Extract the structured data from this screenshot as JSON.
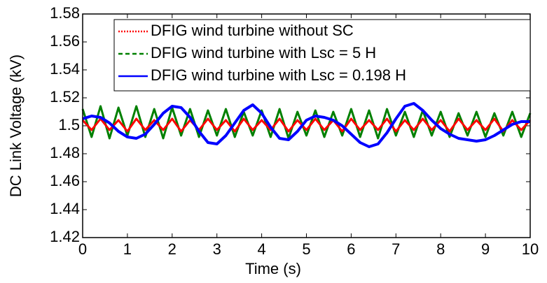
{
  "chart_data": {
    "type": "line",
    "x_label": "Time (s)",
    "y_label": "DC Link Voltage (kV)",
    "x": [
      0,
      0.2,
      0.4,
      0.6,
      0.8,
      1,
      1.2,
      1.4,
      1.6,
      1.8,
      2,
      2.2,
      2.4,
      2.6,
      2.8,
      3,
      3.2,
      3.4,
      3.6,
      3.8,
      4,
      4.2,
      4.4,
      4.6,
      4.8,
      5,
      5.2,
      5.4,
      5.6,
      5.8,
      6,
      6.2,
      6.4,
      6.6,
      6.8,
      7,
      7.2,
      7.4,
      7.6,
      7.8,
      8,
      8.2,
      8.4,
      8.6,
      8.8,
      9,
      9.2,
      9.4,
      9.6,
      9.8,
      10
    ],
    "series": [
      {
        "name": "DFIG wind turbine without SC",
        "color": "#ff0000",
        "style": "dotted",
        "values": [
          1.504,
          1.497,
          1.505,
          1.497,
          1.504,
          1.496,
          1.505,
          1.497,
          1.504,
          1.497,
          1.505,
          1.496,
          1.504,
          1.497,
          1.505,
          1.497,
          1.504,
          1.496,
          1.505,
          1.497,
          1.504,
          1.497,
          1.505,
          1.496,
          1.504,
          1.497,
          1.505,
          1.497,
          1.504,
          1.496,
          1.505,
          1.497,
          1.504,
          1.497,
          1.505,
          1.496,
          1.504,
          1.497,
          1.505,
          1.497,
          1.504,
          1.496,
          1.505,
          1.497,
          1.504,
          1.497,
          1.505,
          1.496,
          1.504,
          1.497,
          1.504
        ]
      },
      {
        "name": "DFIG wind turbine with Lsc = 5 H",
        "color": "#008000",
        "style": "dashed",
        "values": [
          1.512,
          1.492,
          1.514,
          1.491,
          1.513,
          1.493,
          1.514,
          1.492,
          1.512,
          1.491,
          1.513,
          1.493,
          1.512,
          1.492,
          1.511,
          1.493,
          1.512,
          1.492,
          1.51,
          1.493,
          1.511,
          1.492,
          1.512,
          1.491,
          1.51,
          1.493,
          1.511,
          1.492,
          1.51,
          1.493,
          1.512,
          1.492,
          1.511,
          1.491,
          1.512,
          1.493,
          1.51,
          1.492,
          1.511,
          1.493,
          1.51,
          1.492,
          1.509,
          1.493,
          1.51,
          1.492,
          1.509,
          1.493,
          1.51,
          1.492,
          1.509
        ]
      },
      {
        "name": "DFIG wind turbine with Lsc = 0.198 H",
        "color": "#0000ff",
        "style": "solid",
        "values": [
          1.505,
          1.507,
          1.506,
          1.502,
          1.496,
          1.492,
          1.491,
          1.494,
          1.501,
          1.509,
          1.514,
          1.513,
          1.506,
          1.496,
          1.488,
          1.487,
          1.493,
          1.502,
          1.511,
          1.515,
          1.509,
          1.499,
          1.491,
          1.49,
          1.496,
          1.504,
          1.507,
          1.506,
          1.504,
          1.5,
          1.494,
          1.488,
          1.485,
          1.487,
          1.495,
          1.505,
          1.514,
          1.516,
          1.511,
          1.504,
          1.498,
          1.494,
          1.491,
          1.49,
          1.489,
          1.49,
          1.493,
          1.497,
          1.501,
          1.503,
          1.503
        ]
      }
    ],
    "xlim": [
      0,
      10
    ],
    "xticks": [
      0,
      1,
      2,
      3,
      4,
      5,
      6,
      7,
      8,
      9,
      10
    ],
    "ylim": [
      1.42,
      1.58
    ],
    "yticks": [
      1.42,
      1.44,
      1.46,
      1.48,
      1.5,
      1.52,
      1.54,
      1.56,
      1.58
    ],
    "legend": "top-right"
  }
}
